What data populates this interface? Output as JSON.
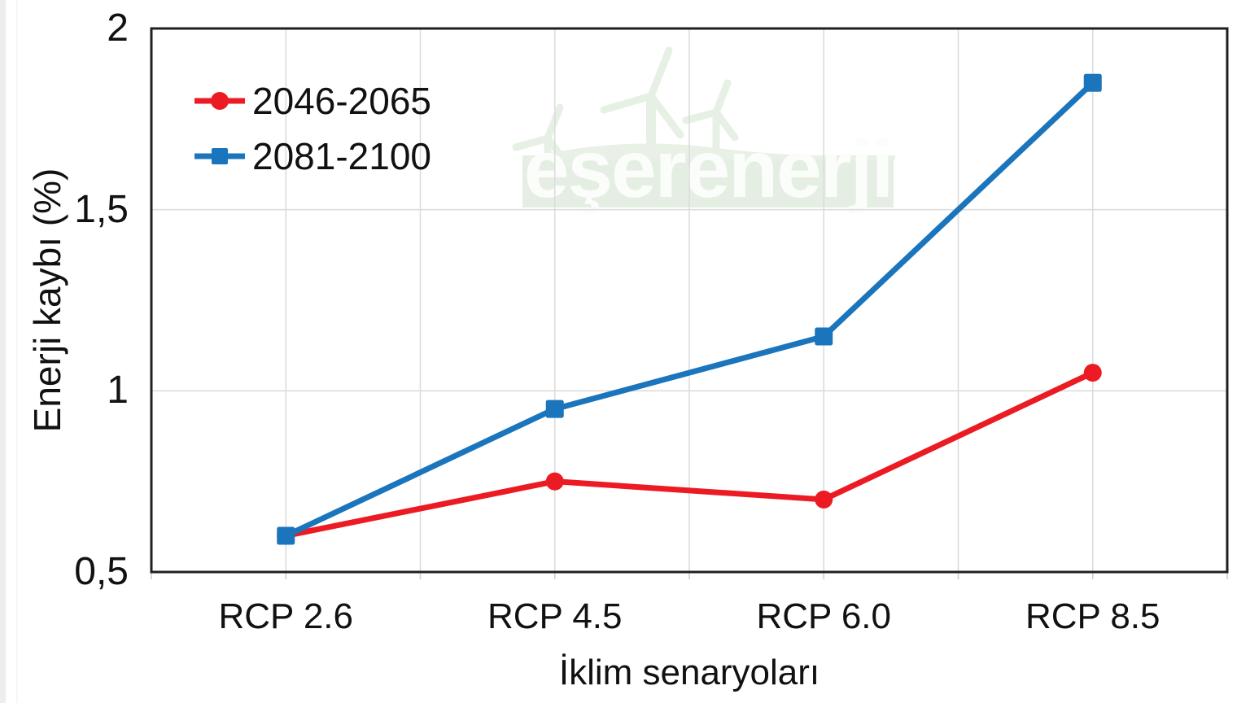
{
  "page": {
    "background": "#ffffff"
  },
  "watermark": {
    "text": "eşerenerji",
    "band_color": "#e5eee2",
    "shape_color": "#e9f1e6"
  },
  "chart_data": {
    "type": "line",
    "categories": [
      "RCP 2.6",
      "RCP 4.5",
      "RCP 6.0",
      "RCP 8.5"
    ],
    "series": [
      {
        "name": "2046-2065",
        "color": "#ec1b23",
        "marker": "circle",
        "values": [
          0.6,
          0.75,
          0.7,
          1.05
        ]
      },
      {
        "name": "2081-2100",
        "color": "#1b75bc",
        "marker": "square",
        "values": [
          0.6,
          0.95,
          1.15,
          1.85
        ]
      }
    ],
    "xlabel": "İklim senaryoları",
    "ylabel": "Enerji kaybı (%)",
    "ylim": [
      0.5,
      2.0
    ],
    "ytick_values": [
      2,
      1.5,
      1,
      0.5
    ],
    "ytick_labels": [
      "2",
      "1,5",
      "1",
      "0,5"
    ],
    "grid": true,
    "gridline_color": "#dcdcdc",
    "tick_color": "#cfcfcf",
    "axis_color": "#1f1f1f",
    "legend_position": "top-left-inside"
  }
}
